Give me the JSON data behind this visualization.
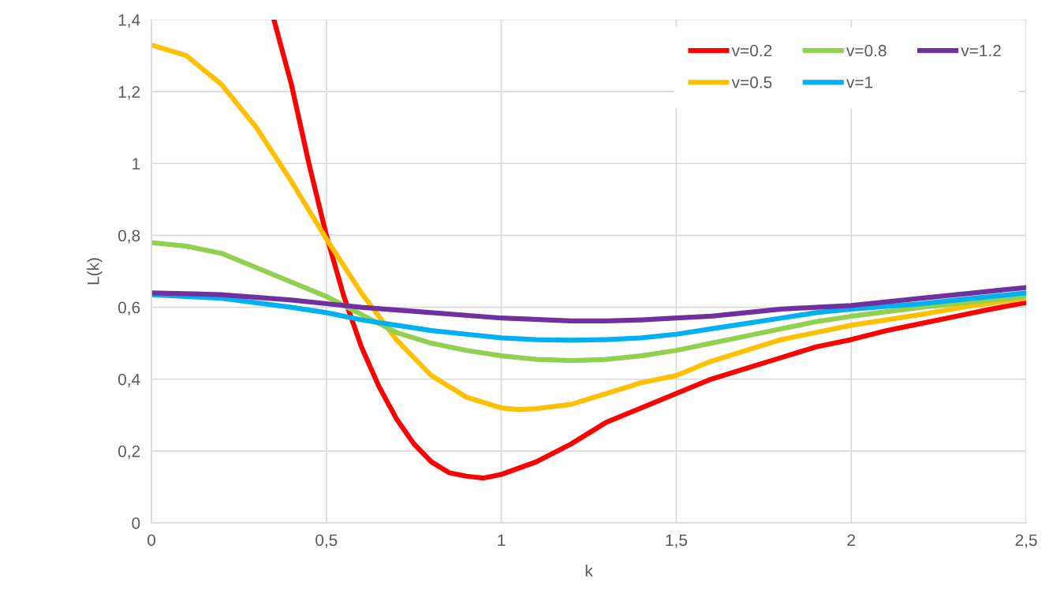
{
  "chart_data": {
    "type": "line",
    "xlabel": "k",
    "ylabel": "L(k)",
    "xlim": [
      0,
      2.5
    ],
    "ylim": [
      0,
      1.4
    ],
    "xticks": [
      0,
      {
        "value": 0.5,
        "label": "0,5"
      },
      1,
      {
        "value": 1.5,
        "label": "1,5"
      },
      2,
      {
        "value": 2.5,
        "label": "2,5"
      }
    ],
    "yticks": [
      0,
      {
        "value": 0.2,
        "label": "0,2"
      },
      {
        "value": 0.4,
        "label": "0,4"
      },
      {
        "value": 0.6,
        "label": "0,6"
      },
      {
        "value": 0.8,
        "label": "0,8"
      },
      1,
      {
        "value": 1.2,
        "label": "1,2"
      },
      {
        "value": 1.4,
        "label": "1,4"
      }
    ],
    "grid": true,
    "legend": "top right",
    "marker": "none",
    "line_style": "solid",
    "series": [
      {
        "name": "v=0.2",
        "color": "#ff0000",
        "x": [
          0.35,
          0.4,
          0.45,
          0.5,
          0.55,
          0.6,
          0.65,
          0.7,
          0.75,
          0.8,
          0.85,
          0.9,
          0.95,
          1.0,
          1.1,
          1.2,
          1.3,
          1.4,
          1.5,
          1.6,
          1.7,
          1.8,
          1.9,
          2.0,
          2.1,
          2.2,
          2.3,
          2.4,
          2.5
        ],
        "values": [
          1.4,
          1.22,
          1.0,
          0.8,
          0.63,
          0.49,
          0.38,
          0.29,
          0.22,
          0.17,
          0.14,
          0.13,
          0.125,
          0.135,
          0.17,
          0.22,
          0.28,
          0.32,
          0.36,
          0.4,
          0.43,
          0.46,
          0.49,
          0.51,
          0.535,
          0.555,
          0.575,
          0.595,
          0.613
        ]
      },
      {
        "name": "v=0.5",
        "color": "#ffc000",
        "x": [
          0,
          0.1,
          0.2,
          0.3,
          0.4,
          0.5,
          0.6,
          0.7,
          0.8,
          0.9,
          1.0,
          1.05,
          1.1,
          1.2,
          1.3,
          1.4,
          1.5,
          1.6,
          1.7,
          1.8,
          1.9,
          2.0,
          2.2,
          2.35,
          2.5
        ],
        "values": [
          1.33,
          1.3,
          1.22,
          1.1,
          0.95,
          0.79,
          0.64,
          0.51,
          0.41,
          0.35,
          0.32,
          0.315,
          0.318,
          0.33,
          0.36,
          0.39,
          0.41,
          0.45,
          0.48,
          0.51,
          0.53,
          0.55,
          0.58,
          0.605,
          0.625
        ]
      },
      {
        "name": "v=0.8",
        "color": "#92d050",
        "x": [
          0,
          0.1,
          0.2,
          0.3,
          0.4,
          0.5,
          0.6,
          0.7,
          0.8,
          0.9,
          1.0,
          1.1,
          1.2,
          1.3,
          1.4,
          1.5,
          1.6,
          1.7,
          1.8,
          1.9,
          2.0,
          2.2,
          2.35,
          2.5
        ],
        "values": [
          0.78,
          0.77,
          0.75,
          0.71,
          0.67,
          0.63,
          0.58,
          0.53,
          0.5,
          0.48,
          0.465,
          0.455,
          0.452,
          0.455,
          0.465,
          0.48,
          0.5,
          0.52,
          0.54,
          0.56,
          0.575,
          0.6,
          0.615,
          0.63
        ]
      },
      {
        "name": "v=1",
        "color": "#00b0f0",
        "x": [
          0,
          0.2,
          0.4,
          0.5,
          0.6,
          0.7,
          0.8,
          0.9,
          1.0,
          1.1,
          1.2,
          1.3,
          1.4,
          1.5,
          1.6,
          1.7,
          1.8,
          1.9,
          2.0,
          2.2,
          2.35,
          2.5
        ],
        "values": [
          0.635,
          0.625,
          0.6,
          0.585,
          0.565,
          0.55,
          0.535,
          0.525,
          0.515,
          0.51,
          0.508,
          0.51,
          0.515,
          0.525,
          0.54,
          0.555,
          0.57,
          0.585,
          0.595,
          0.61,
          0.625,
          0.64
        ]
      },
      {
        "name": "v=1.2",
        "color": "#7030a0",
        "x": [
          0,
          0.2,
          0.4,
          0.5,
          0.6,
          0.8,
          1.0,
          1.2,
          1.3,
          1.4,
          1.5,
          1.6,
          1.7,
          1.8,
          1.9,
          2.0,
          2.2,
          2.35,
          2.5
        ],
        "values": [
          0.64,
          0.635,
          0.62,
          0.61,
          0.6,
          0.585,
          0.57,
          0.562,
          0.562,
          0.565,
          0.57,
          0.575,
          0.585,
          0.595,
          0.6,
          0.605,
          0.625,
          0.64,
          0.655
        ]
      }
    ]
  }
}
